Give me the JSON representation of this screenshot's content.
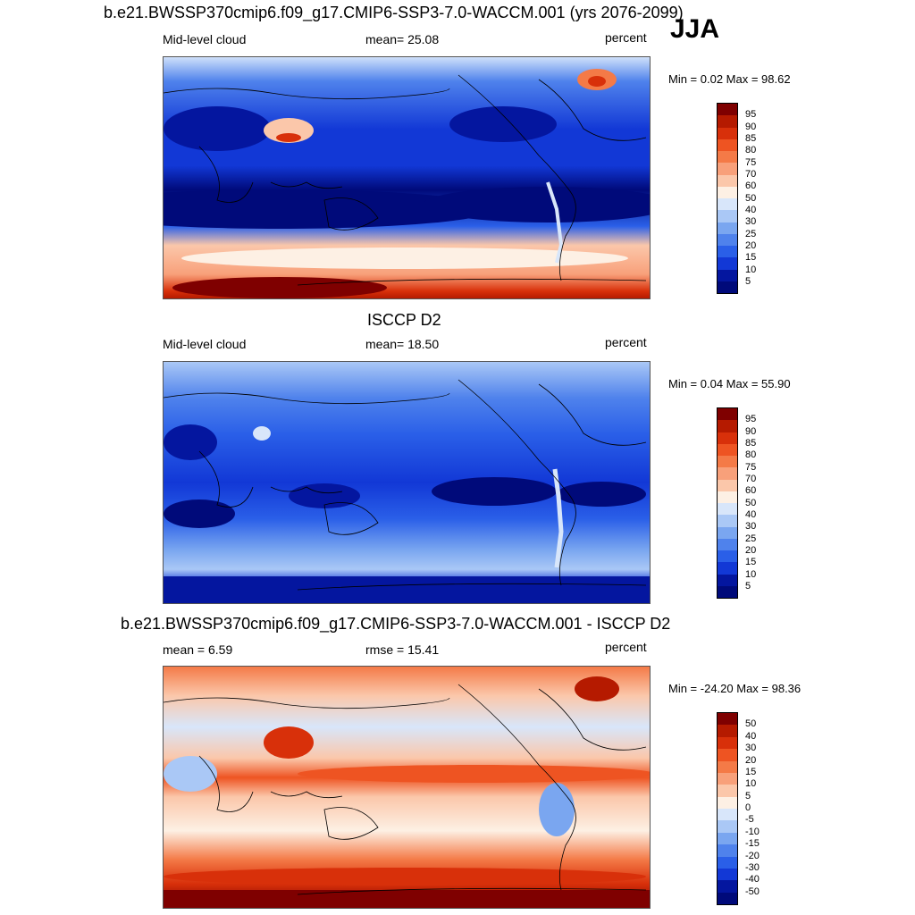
{
  "season": "JJA",
  "panels": [
    {
      "title": "b.e21.BWSSP370cmip6.f09_g17.CMIP6-SSP3-7.0-WACCM.001 (yrs 2076-2099)",
      "left_label": "Mid-level cloud",
      "center_label": "mean=  25.08",
      "right_label": "percent",
      "minmax": "Min =   0.02 Max =  98.62"
    },
    {
      "title": "ISCCP D2",
      "left_label": "Mid-level cloud",
      "center_label": "mean=  18.50",
      "right_label": "percent",
      "minmax": "Min =   0.04 Max =  55.90"
    },
    {
      "title": "b.e21.BWSSP370cmip6.f09_g17.CMIP6-SSP3-7.0-WACCM.001 - ISCCP D2",
      "left_label": "mean =   6.59",
      "center_label": "rmse =  15.41",
      "right_label": "percent",
      "minmax": "Min = -24.20 Max =  98.36"
    }
  ],
  "colorbar_levels": [
    "95",
    "90",
    "85",
    "80",
    "75",
    "70",
    "60",
    "50",
    "40",
    "30",
    "25",
    "20",
    "15",
    "10",
    "5"
  ],
  "diff_colorbar_levels": [
    "50",
    "40",
    "30",
    "20",
    "15",
    "10",
    "5",
    "0",
    "-5",
    "-10",
    "-15",
    "-20",
    "-30",
    "-40",
    "-50"
  ],
  "colors": {
    "scale": [
      "#7f0000",
      "#b51a00",
      "#d8300a",
      "#ee5422",
      "#f47a47",
      "#f8a07a",
      "#fbc7aa",
      "#fdf0e4",
      "#d8e6fa",
      "#aac8f6",
      "#7aa6f0",
      "#4f82ec",
      "#2a5fe8",
      "#1238d6",
      "#04169f",
      "#000a7a"
    ]
  }
}
